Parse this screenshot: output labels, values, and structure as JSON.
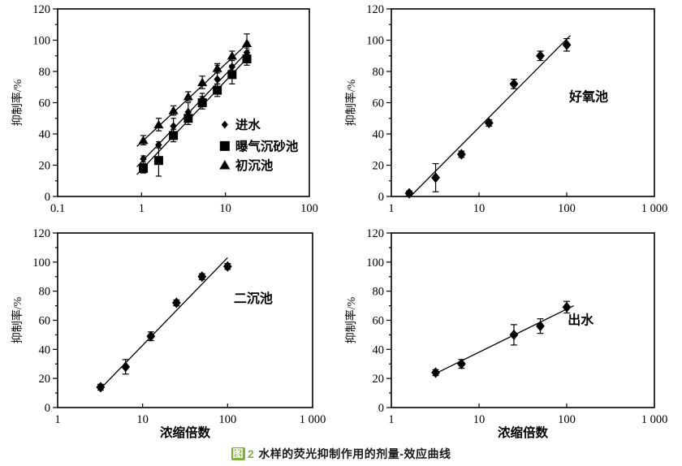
{
  "caption": {
    "figure_badge": "图",
    "figure_number": "2",
    "text": "水样的荧光抑制作用的剂量-效应曲线",
    "green": "#82ae3e"
  },
  "colors": {
    "marker": "#000000",
    "axis": "#000000",
    "background": "#ffffff"
  },
  "chart_data": [
    {
      "id": "influent-aerated-primary",
      "type": "scatter",
      "xscale": "log",
      "xlim": [
        0.1,
        100
      ],
      "ylim": [
        0,
        120
      ],
      "xticks": {
        "values": [
          0.1,
          1,
          10,
          100
        ],
        "labels": [
          "0.1",
          "1",
          "10",
          "100"
        ]
      },
      "yticks": [
        0,
        20,
        40,
        60,
        80,
        100,
        120
      ],
      "ylabel": "抑制率/%",
      "xlabel": "",
      "annotation": null,
      "legend": true,
      "legend_position": "inside-right",
      "grid": false,
      "series": [
        {
          "name": "进水",
          "marker": "diamond",
          "size": 9.5,
          "x": [
            1.05,
            1.6,
            2.4,
            3.6,
            5.3,
            8,
            12,
            18
          ],
          "y": [
            24,
            33,
            45,
            54,
            62,
            75,
            83,
            92
          ],
          "yerr": [
            2,
            2,
            5,
            6,
            4,
            9,
            4,
            3
          ],
          "trendline": [
            [
              0.88,
              19
            ],
            [
              19.3,
              94
            ]
          ]
        },
        {
          "name": "曝气沉砂池",
          "marker": "square",
          "size": 11,
          "x": [
            1.05,
            1.6,
            2.4,
            3.6,
            5.3,
            8,
            12,
            18
          ],
          "y": [
            18,
            23,
            39,
            50,
            60,
            68,
            78,
            88
          ],
          "yerr": [
            3,
            10,
            4,
            4,
            4,
            4,
            6,
            4
          ],
          "trendline": [
            [
              0.88,
              14
            ],
            [
              19.3,
              90
            ]
          ]
        },
        {
          "name": "初沉池",
          "marker": "triangle",
          "size": 11,
          "x": [
            1.05,
            1.6,
            2.4,
            3.6,
            5.3,
            8,
            12,
            18
          ],
          "y": [
            36,
            46,
            55,
            64,
            73,
            82,
            90,
            98
          ],
          "yerr": [
            3,
            4,
            3,
            3,
            4,
            3,
            3,
            6
          ],
          "trendline": [
            [
              0.88,
              32
            ],
            [
              19.3,
              99
            ]
          ]
        }
      ]
    },
    {
      "id": "aerobic-tank",
      "type": "scatter",
      "xscale": "log",
      "xlim": [
        1,
        1000
      ],
      "ylim": [
        0,
        120
      ],
      "xticks": {
        "values": [
          1,
          10,
          100,
          1000
        ],
        "labels": [
          "1",
          "10",
          "100",
          "1 000"
        ]
      },
      "yticks": [
        0,
        20,
        40,
        60,
        80,
        100,
        120
      ],
      "ylabel": "抑制率/%",
      "xlabel": "",
      "annotation": {
        "text": "好氧池",
        "fx": 0.75,
        "fy": 0.47
      },
      "legend": false,
      "grid": false,
      "series": [
        {
          "name": "好氧池",
          "marker": "diamond",
          "size": 12,
          "x": [
            1.6,
            3.2,
            6.3,
            13,
            25,
            50,
            100
          ],
          "y": [
            2,
            12,
            27,
            47,
            72,
            90,
            97
          ],
          "yerr": [
            1.5,
            9,
            2,
            2,
            3,
            3,
            4
          ],
          "trendline": [
            [
              1.65,
              0
            ],
            [
              110,
              103
            ]
          ]
        }
      ]
    },
    {
      "id": "secondary-clarifier",
      "type": "scatter",
      "xscale": "log",
      "xlim": [
        1,
        1000
      ],
      "ylim": [
        0,
        120
      ],
      "xticks": {
        "values": [
          1,
          10,
          100,
          1000
        ],
        "labels": [
          "1",
          "10",
          "100",
          "1 000"
        ]
      },
      "yticks": [
        0,
        20,
        40,
        60,
        80,
        100,
        120
      ],
      "ylabel": "抑制率/%",
      "xlabel": "浓缩倍数",
      "annotation": {
        "text": "二沉池",
        "fx": 0.767,
        "fy": 0.377
      },
      "legend": false,
      "grid": false,
      "series": [
        {
          "name": "二沉池",
          "marker": "diamond",
          "size": 12,
          "x": [
            3.2,
            6.3,
            12.5,
            25,
            50,
            100
          ],
          "y": [
            14,
            28,
            49,
            72,
            90,
            97
          ],
          "yerr": [
            2,
            5,
            3,
            2,
            2,
            2
          ],
          "trendline": [
            [
              3.2,
              13
            ],
            [
              100,
              103
            ]
          ]
        }
      ]
    },
    {
      "id": "effluent",
      "type": "scatter",
      "xscale": "log",
      "xlim": [
        1,
        1000
      ],
      "ylim": [
        0,
        120
      ],
      "xticks": {
        "values": [
          1,
          10,
          100,
          1000
        ],
        "labels": [
          "1",
          "10",
          "100",
          "1 000"
        ]
      },
      "yticks": [
        0,
        20,
        40,
        60,
        80,
        100,
        120
      ],
      "ylabel": "抑制率/%",
      "xlabel": "浓缩倍数",
      "annotation": {
        "text": "出水",
        "fx": 0.72,
        "fy": 0.5
      },
      "legend": false,
      "grid": false,
      "series": [
        {
          "name": "出水",
          "marker": "diamond",
          "size": 12,
          "x": [
            3.2,
            6.3,
            25,
            50,
            100
          ],
          "y": [
            24,
            30,
            50,
            56,
            69
          ],
          "yerr": [
            2,
            3,
            7,
            5,
            4
          ],
          "trendline": [
            [
              3.1,
              23
            ],
            [
              120,
              70
            ]
          ]
        }
      ]
    }
  ]
}
